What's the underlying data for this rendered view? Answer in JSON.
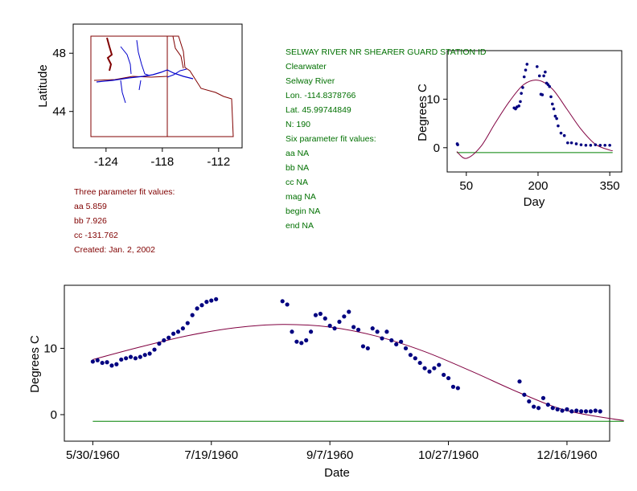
{
  "station": {
    "title": "SELWAY RIVER NR SHEARER GUARD STATION ID",
    "basin": "Clearwater",
    "river": "Selway River",
    "lon": "Lon. -114.8378766",
    "lat": "Lat. 45.99744849",
    "n": "N: 190"
  },
  "six_param": {
    "header": "Six parameter fit values:",
    "aa": "aa NA",
    "bb": "bb NA",
    "cc": "cc NA",
    "mag": "mag NA",
    "begin": "begin NA",
    "end": "end NA"
  },
  "three_param": {
    "header": "Three parameter fit values:",
    "aa": "aa 5.859",
    "bb": "bb 7.926",
    "cc": "cc -131.762",
    "created": "Created:   Jan. 2, 2002"
  },
  "colors": {
    "points": "#000080",
    "fit": "#800040",
    "baseline": "#008000",
    "state": "#800000",
    "river": "#0000cc"
  },
  "chart_data": [
    {
      "id": "map",
      "type": "scatter",
      "xlabel": "",
      "ylabel": "Latitude",
      "xlim": [
        -127.5,
        -109.5
      ],
      "ylim": [
        41.5,
        50
      ],
      "xticks": [
        -124,
        -118,
        -112
      ],
      "yticks": [
        44,
        48
      ],
      "xtick_labels": [
        "-124",
        "-118",
        "-112"
      ],
      "ytick_labels": [
        "44",
        "48"
      ]
    },
    {
      "id": "day",
      "type": "scatter",
      "xlabel": "Day",
      "ylabel": "Degrees C",
      "xlim": [
        10,
        375
      ],
      "ylim": [
        -5,
        20
      ],
      "xticks": [
        50,
        200,
        350
      ],
      "yticks": [
        0,
        10
      ],
      "xtick_labels": [
        "50",
        "200",
        "350"
      ],
      "ytick_labels": [
        "0",
        "10"
      ],
      "series": [
        {
          "name": "observed",
          "points": [
            [
              31,
              0.8
            ],
            [
              32,
              0.6
            ],
            [
              150,
              8.2
            ],
            [
              153,
              8.0
            ],
            [
              156,
              8.4
            ],
            [
              160,
              8.6
            ],
            [
              163,
              9.5
            ],
            [
              165,
              11.2
            ],
            [
              168,
              12.4
            ],
            [
              171,
              14.6
            ],
            [
              174,
              16.0
            ],
            [
              177,
              17.2
            ],
            [
              198,
              16.7
            ],
            [
              203,
              14.8
            ],
            [
              206,
              11.0
            ],
            [
              209,
              10.9
            ],
            [
              212,
              14.8
            ],
            [
              215,
              15.6
            ],
            [
              218,
              13.3
            ],
            [
              221,
              13.0
            ],
            [
              224,
              12.6
            ],
            [
              227,
              10.5
            ],
            [
              230,
              9.0
            ],
            [
              233,
              8.0
            ],
            [
              236,
              6.5
            ],
            [
              239,
              6.0
            ],
            [
              242,
              4.5
            ],
            [
              248,
              3.0
            ],
            [
              255,
              2.5
            ],
            [
              262,
              1.0
            ],
            [
              270,
              1.0
            ],
            [
              280,
              0.8
            ],
            [
              290,
              0.6
            ],
            [
              300,
              0.5
            ],
            [
              310,
              0.5
            ],
            [
              320,
              0.6
            ],
            [
              330,
              0.5
            ],
            [
              340,
              0.5
            ],
            [
              350,
              0.5
            ]
          ]
        },
        {
          "name": "three-parameter fit",
          "points": [
            [
              30,
              -0.8
            ],
            [
              50,
              -2.2
            ],
            [
              80,
              0.2
            ],
            [
              110,
              5.0
            ],
            [
              140,
              9.5
            ],
            [
              170,
              13.0
            ],
            [
              200,
              13.9
            ],
            [
              230,
              12.1
            ],
            [
              260,
              8.0
            ],
            [
              290,
              3.8
            ],
            [
              320,
              0.7
            ],
            [
              350,
              -0.5
            ],
            [
              356,
              -0.6
            ]
          ]
        },
        {
          "name": "baseline",
          "points": [
            [
              30,
              -1.0
            ],
            [
              356,
              -1.0
            ]
          ]
        }
      ]
    },
    {
      "id": "date",
      "type": "scatter",
      "xlabel": "Date",
      "ylabel": "Degrees C",
      "xlim": [
        -12,
        218
      ],
      "ylim": [
        -4,
        19.5
      ],
      "xticks": [
        0,
        50,
        100,
        150,
        200
      ],
      "yticks": [
        0,
        10
      ],
      "xtick_labels": [
        "5/30/1960",
        "7/19/1960",
        "9/7/1960",
        "10/27/1960",
        "12/16/1960"
      ],
      "ytick_labels": [
        "0",
        "10"
      ],
      "series": [
        {
          "name": "observed",
          "points": [
            [
              0,
              8.0
            ],
            [
              2,
              8.2
            ],
            [
              4,
              7.8
            ],
            [
              6,
              7.9
            ],
            [
              8,
              7.4
            ],
            [
              10,
              7.6
            ],
            [
              12,
              8.3
            ],
            [
              14,
              8.5
            ],
            [
              16,
              8.7
            ],
            [
              18,
              8.5
            ],
            [
              20,
              8.7
            ],
            [
              22,
              9.0
            ],
            [
              24,
              9.2
            ],
            [
              26,
              9.8
            ],
            [
              28,
              10.7
            ],
            [
              30,
              11.2
            ],
            [
              32,
              11.6
            ],
            [
              34,
              12.2
            ],
            [
              36,
              12.5
            ],
            [
              38,
              13.0
            ],
            [
              40,
              13.8
            ],
            [
              42,
              15.0
            ],
            [
              44,
              16.0
            ],
            [
              46,
              16.5
            ],
            [
              48,
              17.0
            ],
            [
              50,
              17.2
            ],
            [
              52,
              17.4
            ],
            [
              80,
              17.1
            ],
            [
              82,
              16.6
            ],
            [
              84,
              12.5
            ],
            [
              86,
              11.0
            ],
            [
              88,
              10.8
            ],
            [
              90,
              11.2
            ],
            [
              92,
              12.5
            ],
            [
              94,
              15.0
            ],
            [
              96,
              15.2
            ],
            [
              98,
              14.5
            ],
            [
              100,
              13.4
            ],
            [
              102,
              13.0
            ],
            [
              104,
              14.0
            ],
            [
              106,
              14.8
            ],
            [
              108,
              15.5
            ],
            [
              110,
              13.2
            ],
            [
              112,
              12.8
            ],
            [
              114,
              10.3
            ],
            [
              116,
              10.0
            ],
            [
              118,
              13.0
            ],
            [
              120,
              12.5
            ],
            [
              122,
              11.5
            ],
            [
              124,
              12.5
            ],
            [
              126,
              11.2
            ],
            [
              128,
              10.6
            ],
            [
              130,
              11.0
            ],
            [
              132,
              10.0
            ],
            [
              134,
              9.0
            ],
            [
              136,
              8.5
            ],
            [
              138,
              7.8
            ],
            [
              140,
              7.0
            ],
            [
              142,
              6.5
            ],
            [
              144,
              7.0
            ],
            [
              146,
              7.5
            ],
            [
              148,
              6.0
            ],
            [
              150,
              5.5
            ],
            [
              152,
              4.2
            ],
            [
              154,
              4.0
            ],
            [
              180,
              5.0
            ],
            [
              182,
              3.0
            ],
            [
              184,
              2.0
            ],
            [
              186,
              1.2
            ],
            [
              188,
              1.0
            ],
            [
              190,
              2.5
            ],
            [
              192,
              1.5
            ],
            [
              194,
              1.0
            ],
            [
              196,
              0.8
            ],
            [
              198,
              0.6
            ],
            [
              200,
              0.8
            ],
            [
              202,
              0.5
            ],
            [
              204,
              0.6
            ],
            [
              206,
              0.5
            ],
            [
              208,
              0.5
            ],
            [
              210,
              0.5
            ],
            [
              212,
              0.6
            ],
            [
              214,
              0.5
            ]
          ]
        },
        {
          "name": "three-parameter fit",
          "points": [
            [
              0,
              8.3
            ],
            [
              20,
              10.2
            ],
            [
              40,
              11.9
            ],
            [
              60,
              13.1
            ],
            [
              80,
              13.6
            ],
            [
              100,
              13.2
            ],
            [
              120,
              11.8
            ],
            [
              140,
              9.5
            ],
            [
              160,
              6.5
            ],
            [
              180,
              3.3
            ],
            [
              200,
              0.6
            ],
            [
              224,
              -0.9
            ]
          ]
        },
        {
          "name": "baseline",
          "points": [
            [
              0,
              -1.0
            ],
            [
              224,
              -1.0
            ]
          ]
        }
      ]
    }
  ]
}
